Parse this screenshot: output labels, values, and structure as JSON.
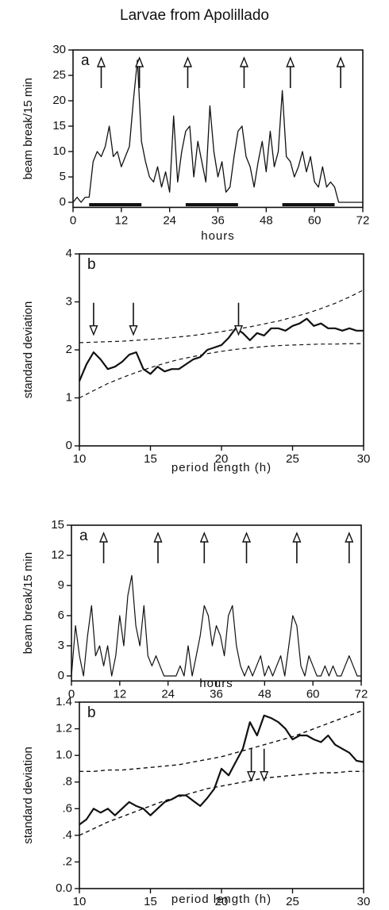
{
  "title": "Larvae from Apolillado",
  "chart_data": [
    {
      "type": "line",
      "panel_label": "a",
      "xlabel": "hours",
      "ylabel": "beam break/15 min",
      "xlim": [
        0,
        72
      ],
      "xticks": [
        0,
        12,
        24,
        36,
        48,
        60,
        72
      ],
      "ylim": [
        -1,
        30
      ],
      "yticks": [
        0,
        5,
        10,
        15,
        20,
        25,
        30
      ],
      "x": [
        0,
        1,
        2,
        3,
        4,
        5,
        6,
        7,
        8,
        9,
        10,
        11,
        12,
        13,
        14,
        15,
        16,
        17,
        18,
        19,
        20,
        21,
        22,
        23,
        24,
        25,
        26,
        27,
        28,
        29,
        30,
        31,
        32,
        33,
        34,
        35,
        36,
        37,
        38,
        39,
        40,
        41,
        42,
        43,
        44,
        45,
        46,
        47,
        48,
        49,
        50,
        51,
        52,
        53,
        54,
        55,
        56,
        57,
        58,
        59,
        60,
        61,
        62,
        63,
        64,
        65,
        66,
        67,
        68,
        69,
        70,
        71,
        72
      ],
      "series": [
        {
          "color": "#111111",
          "stroke_width": 1.3,
          "values": [
            0,
            1,
            0,
            1,
            1,
            8,
            10,
            9,
            11,
            15,
            9,
            10,
            7,
            9,
            11,
            20,
            28,
            12,
            8,
            5,
            4,
            7,
            3,
            6,
            2,
            17,
            4,
            10,
            14,
            15,
            5,
            12,
            8,
            4,
            19,
            10,
            5,
            8,
            2,
            3,
            9,
            14,
            15,
            9,
            7,
            3,
            8,
            12,
            6,
            14,
            7,
            10,
            22,
            9,
            8,
            5,
            7,
            10,
            6,
            9,
            4,
            3,
            7,
            3,
            4,
            3,
            0,
            0,
            0,
            0,
            0,
            0,
            0
          ]
        }
      ],
      "dark_bars": [
        [
          4,
          17
        ],
        [
          28,
          41
        ],
        [
          52,
          65
        ]
      ],
      "arrows": [
        7,
        16.5,
        28.5,
        42.5,
        54,
        66.5
      ],
      "arrow_direction": "up"
    },
    {
      "type": "line",
      "panel_label": "b",
      "xlabel": "period length (h)",
      "ylabel": "standard deviation",
      "xlim": [
        10,
        30
      ],
      "xticks": [
        10,
        15,
        20,
        25,
        30
      ],
      "ylim": [
        0,
        4
      ],
      "yticks": [
        0,
        1,
        2,
        3,
        4
      ],
      "x": [
        10,
        10.5,
        11,
        11.5,
        12,
        12.5,
        13,
        13.5,
        14,
        14.5,
        15,
        15.5,
        16,
        16.5,
        17,
        17.5,
        18,
        18.5,
        19,
        19.5,
        20,
        20.5,
        21,
        21.5,
        22,
        22.5,
        23,
        23.5,
        24,
        24.5,
        25,
        25.5,
        26,
        26.5,
        27,
        27.5,
        28,
        28.5,
        29,
        29.5,
        30
      ],
      "series": [
        {
          "color": "#111111",
          "stroke_width": 2.2,
          "values": [
            1.35,
            1.7,
            1.95,
            1.8,
            1.6,
            1.65,
            1.75,
            1.9,
            1.95,
            1.6,
            1.5,
            1.65,
            1.55,
            1.6,
            1.6,
            1.7,
            1.8,
            1.85,
            2.0,
            2.05,
            2.1,
            2.25,
            2.45,
            2.35,
            2.2,
            2.35,
            2.3,
            2.45,
            2.45,
            2.4,
            2.5,
            2.55,
            2.65,
            2.5,
            2.55,
            2.45,
            2.45,
            2.4,
            2.45,
            2.4,
            2.4
          ]
        },
        {
          "color": "#111111",
          "stroke_width": 1.2,
          "style": "dashed",
          "x": [
            10,
            11,
            12,
            13,
            14,
            15,
            16,
            17,
            18,
            19,
            20,
            21,
            22,
            23,
            24,
            25,
            26,
            27,
            28,
            29,
            30
          ],
          "values": [
            2.15,
            2.16,
            2.17,
            2.18,
            2.2,
            2.22,
            2.24,
            2.27,
            2.3,
            2.34,
            2.38,
            2.43,
            2.48,
            2.54,
            2.6,
            2.68,
            2.76,
            2.86,
            2.97,
            3.1,
            3.25
          ]
        },
        {
          "color": "#111111",
          "stroke_width": 1.2,
          "style": "dashed",
          "x": [
            10,
            11,
            12,
            13,
            14,
            15,
            16,
            17,
            18,
            19,
            20,
            21,
            22,
            23,
            24,
            25,
            26,
            27,
            28,
            29,
            30
          ],
          "values": [
            1.0,
            1.15,
            1.3,
            1.42,
            1.53,
            1.63,
            1.72,
            1.8,
            1.86,
            1.92,
            1.97,
            2.01,
            2.04,
            2.07,
            2.09,
            2.1,
            2.11,
            2.12,
            2.12,
            2.13,
            2.13
          ]
        }
      ],
      "arrows": [
        11,
        13.8,
        21.2
      ],
      "arrow_direction": "down"
    },
    {
      "type": "line",
      "panel_label": "a",
      "xlabel": "hours",
      "ylabel": "beam break/15 min",
      "xlim": [
        0,
        72
      ],
      "xticks": [
        0,
        12,
        24,
        36,
        48,
        60,
        72
      ],
      "ylim": [
        -0.5,
        15
      ],
      "yticks": [
        0,
        3,
        6,
        9,
        12,
        15
      ],
      "x": [
        0,
        1,
        2,
        3,
        4,
        5,
        6,
        7,
        8,
        9,
        10,
        11,
        12,
        13,
        14,
        15,
        16,
        17,
        18,
        19,
        20,
        21,
        22,
        23,
        24,
        25,
        26,
        27,
        28,
        29,
        30,
        31,
        32,
        33,
        34,
        35,
        36,
        37,
        38,
        39,
        40,
        41,
        42,
        43,
        44,
        45,
        46,
        47,
        48,
        49,
        50,
        51,
        52,
        53,
        54,
        55,
        56,
        57,
        58,
        59,
        60,
        61,
        62,
        63,
        64,
        65,
        66,
        67,
        68,
        69,
        70,
        71,
        72
      ],
      "series": [
        {
          "color": "#111111",
          "stroke_width": 1.2,
          "values": [
            0,
            5,
            2,
            0,
            4,
            7,
            2,
            3,
            1,
            3,
            0,
            2,
            6,
            3,
            8,
            10,
            5,
            3,
            7,
            2,
            1,
            2,
            1,
            0,
            0,
            0,
            0,
            1,
            0,
            3,
            0,
            2,
            4,
            7,
            6,
            3,
            5,
            4,
            2,
            6,
            7,
            3,
            1,
            0,
            1,
            0,
            1,
            2,
            0,
            1,
            0,
            1,
            2,
            0,
            3,
            6,
            5,
            1,
            0,
            2,
            1,
            0,
            0,
            1,
            0,
            1,
            0,
            0,
            1,
            2,
            1,
            0,
            0
          ]
        }
      ],
      "arrows": [
        8,
        21.5,
        33,
        43.5,
        56,
        69
      ],
      "arrow_direction": "up"
    },
    {
      "type": "line",
      "panel_label": "b",
      "xlabel": "period length (h)",
      "ylabel": "standard deviation",
      "xlim": [
        10,
        30
      ],
      "xticks": [
        10,
        15,
        20,
        25,
        30
      ],
      "ylim": [
        0,
        1.4
      ],
      "yticks": [
        {
          "value": 0,
          "label": "0.0"
        },
        {
          "value": 0.2,
          "label": ".2"
        },
        {
          "value": 0.4,
          "label": ".4"
        },
        {
          "value": 0.6,
          "label": ".6"
        },
        {
          "value": 0.8,
          "label": ".8"
        },
        {
          "value": 1,
          "label": "1.0"
        },
        1.2,
        1.4
      ],
      "x": [
        10,
        10.5,
        11,
        11.5,
        12,
        12.5,
        13,
        13.5,
        14,
        14.5,
        15,
        15.5,
        16,
        16.5,
        17,
        17.5,
        18,
        18.5,
        19,
        19.5,
        20,
        20.5,
        21,
        21.5,
        22,
        22.5,
        23,
        23.5,
        24,
        24.5,
        25,
        25.5,
        26,
        26.5,
        27,
        27.5,
        28,
        28.5,
        29,
        29.5,
        30
      ],
      "series": [
        {
          "color": "#111111",
          "stroke_width": 2.2,
          "values": [
            0.48,
            0.52,
            0.6,
            0.57,
            0.6,
            0.55,
            0.6,
            0.65,
            0.62,
            0.6,
            0.55,
            0.6,
            0.65,
            0.67,
            0.7,
            0.7,
            0.66,
            0.62,
            0.68,
            0.75,
            0.9,
            0.85,
            0.95,
            1.05,
            1.25,
            1.15,
            1.3,
            1.28,
            1.25,
            1.2,
            1.12,
            1.15,
            1.15,
            1.12,
            1.1,
            1.15,
            1.08,
            1.05,
            1.02,
            0.96,
            0.95
          ]
        },
        {
          "color": "#111111",
          "stroke_width": 1.4,
          "style": "dashed",
          "x": [
            10,
            11,
            12,
            13,
            14,
            15,
            16,
            17,
            18,
            19,
            20,
            21,
            22,
            23,
            24,
            25,
            26,
            27,
            28,
            29,
            30
          ],
          "values": [
            0.88,
            0.88,
            0.89,
            0.89,
            0.9,
            0.91,
            0.92,
            0.93,
            0.95,
            0.97,
            0.99,
            1.02,
            1.05,
            1.08,
            1.11,
            1.14,
            1.18,
            1.22,
            1.26,
            1.3,
            1.34
          ]
        },
        {
          "color": "#111111",
          "stroke_width": 1.4,
          "style": "dashed",
          "x": [
            10,
            11,
            12,
            13,
            14,
            15,
            16,
            17,
            18,
            19,
            20,
            21,
            22,
            23,
            24,
            25,
            26,
            27,
            28,
            29,
            30
          ],
          "values": [
            0.4,
            0.45,
            0.5,
            0.54,
            0.58,
            0.62,
            0.66,
            0.69,
            0.72,
            0.75,
            0.77,
            0.79,
            0.81,
            0.83,
            0.84,
            0.85,
            0.86,
            0.87,
            0.87,
            0.88,
            0.88
          ]
        }
      ],
      "arrows": [
        22.1,
        23
      ],
      "arrow_direction": "down"
    }
  ]
}
